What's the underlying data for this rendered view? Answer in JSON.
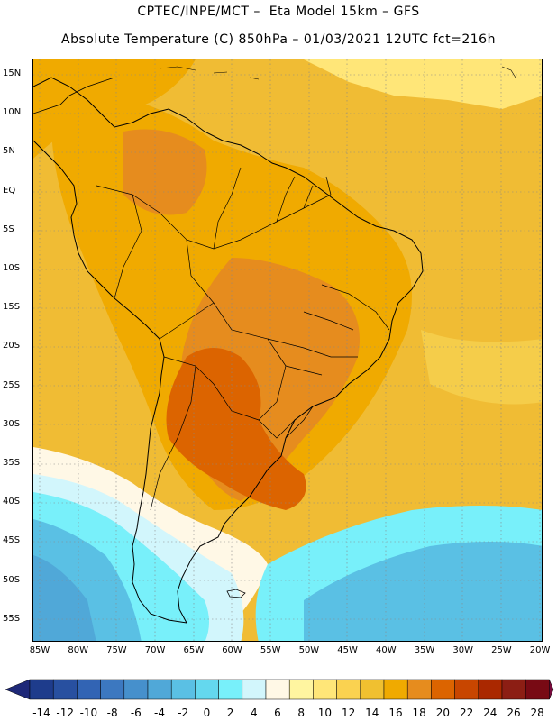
{
  "header": {
    "line1": "CPTEC/INPE/MCT –  Eta Model 15km – GFS",
    "line2": "Absolute Temperature (C) 850hPa – 01/03/2021 12UTC fct=216h"
  },
  "map": {
    "lat_labels": [
      "15N",
      "10N",
      "5N",
      "EQ",
      "5S",
      "10S",
      "15S",
      "20S",
      "25S",
      "30S",
      "35S",
      "40S",
      "45S",
      "50S",
      "55S"
    ],
    "lon_labels": [
      "85W",
      "80W",
      "75W",
      "70W",
      "65W",
      "60W",
      "55W",
      "50W",
      "45W",
      "40W",
      "35W",
      "30W",
      "25W",
      "20W"
    ]
  },
  "colorbar": {
    "labels": [
      "-14",
      "-12",
      "-10",
      "-8",
      "-6",
      "-4",
      "-2",
      "0",
      "2",
      "4",
      "6",
      "8",
      "10",
      "12",
      "14",
      "16",
      "18",
      "20",
      "22",
      "24",
      "26",
      "28"
    ],
    "colors": [
      "#1e3c8c",
      "#2850a0",
      "#3264b4",
      "#3c78c0",
      "#4690cc",
      "#50a8d8",
      "#5ac0e4",
      "#64d8ee",
      "#78f0fa",
      "#d2f6fc",
      "#fff8e6",
      "#fff5a0",
      "#ffe678",
      "#fad250",
      "#f0c030",
      "#f0aa00",
      "#e68c1e",
      "#dc6400",
      "#c84600",
      "#aa2800",
      "#8c1e14",
      "#780a14"
    ],
    "low_arrow_color": "#1e2878",
    "high_arrow_color": "#780a3c"
  },
  "palette": {
    "base": "#f0bc34",
    "light_yellow": "#ffe678",
    "orange": "#f0aa00",
    "dark_orange": "#e68c1e",
    "red_orange": "#dc6400",
    "cream": "#fff8e6",
    "pale_cyan": "#d2f6fc",
    "cyan": "#78f0fa",
    "light_blue": "#5ac0e4",
    "blue": "#50a8d8"
  }
}
